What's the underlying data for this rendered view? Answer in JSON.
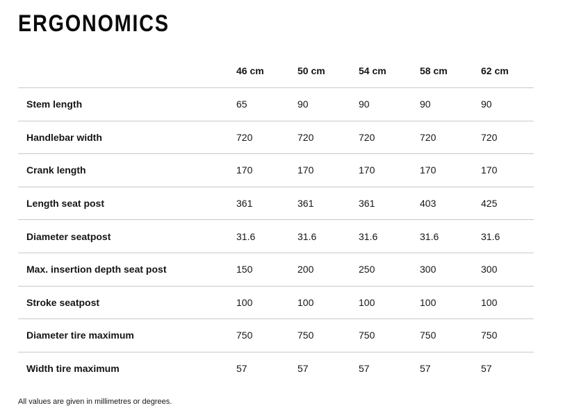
{
  "page": {
    "title": "ERGONOMICS",
    "footnote": "All values are given in millimetres or degrees."
  },
  "table": {
    "columns": [
      "46 cm",
      "50 cm",
      "54 cm",
      "58 cm",
      "62 cm"
    ],
    "rows": [
      {
        "label": "Stem length",
        "values": [
          "65",
          "90",
          "90",
          "90",
          "90"
        ]
      },
      {
        "label": "Handlebar width",
        "values": [
          "720",
          "720",
          "720",
          "720",
          "720"
        ]
      },
      {
        "label": "Crank length",
        "values": [
          "170",
          "170",
          "170",
          "170",
          "170"
        ]
      },
      {
        "label": "Length seat post",
        "values": [
          "361",
          "361",
          "361",
          "403",
          "425"
        ]
      },
      {
        "label": "Diameter seatpost",
        "values": [
          "31.6",
          "31.6",
          "31.6",
          "31.6",
          "31.6"
        ]
      },
      {
        "label": "Max. insertion depth seat post",
        "values": [
          "150",
          "200",
          "250",
          "300",
          "300"
        ]
      },
      {
        "label": "Stroke seatpost",
        "values": [
          "100",
          "100",
          "100",
          "100",
          "100"
        ]
      },
      {
        "label": "Diameter tire maximum",
        "values": [
          "750",
          "750",
          "750",
          "750",
          "750"
        ]
      },
      {
        "label": "Width tire maximum",
        "values": [
          "57",
          "57",
          "57",
          "57",
          "57"
        ]
      }
    ]
  },
  "colors": {
    "background": "#ffffff",
    "text": "#151515",
    "divider": "#c8c8c8"
  }
}
